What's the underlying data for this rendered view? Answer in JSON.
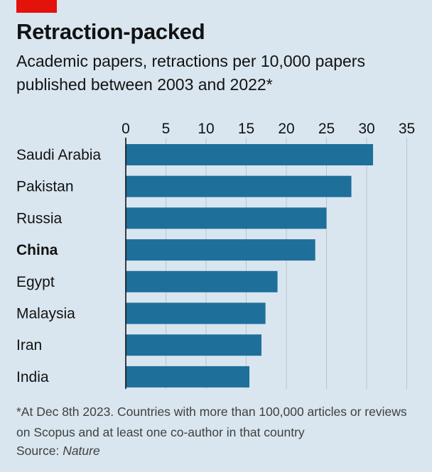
{
  "colors": {
    "background": "#d9e6ef",
    "accent_red": "#e3120b",
    "bar": "#1f6f9b",
    "grid": "#b7c6cf",
    "text": "#121212",
    "muted_text": "#3f3f3f"
  },
  "title": "Retraction-packed",
  "subtitle": "Academic papers, retractions per 10,000 papers published between 2003 and 2022*",
  "footnote": "*At Dec 8th 2023. Countries with more than 100,000 articles or reviews on Scopus and at least one co-author in that country",
  "source": {
    "label": "Source: ",
    "value": "Nature"
  },
  "chart_data": {
    "type": "bar",
    "orientation": "horizontal",
    "categories": [
      "Saudi Arabia",
      "Pakistan",
      "Russia",
      "China",
      "Egypt",
      "Malaysia",
      "Iran",
      "India"
    ],
    "highlighted_category": "China",
    "values": [
      30.8,
      28.1,
      25.0,
      23.6,
      18.9,
      17.4,
      16.9,
      15.4
    ],
    "xlim": [
      0,
      35
    ],
    "x_ticks": [
      0,
      5,
      10,
      15,
      20,
      25,
      30,
      35
    ],
    "x_axis_position": "top",
    "gridlines": true
  }
}
